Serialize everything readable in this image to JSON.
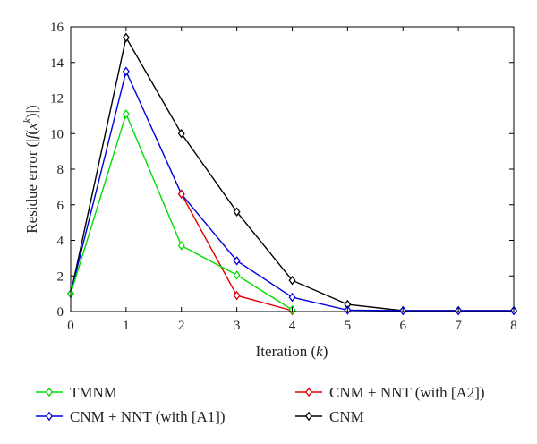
{
  "chart_data": {
    "type": "line",
    "xlabel_main": "Iteration (",
    "xlabel_var": "k",
    "xlabel_end": ")",
    "ylabel_pre": "Residue error (|",
    "ylabel_f": "f",
    "ylabel_open": "(",
    "ylabel_x": "x",
    "ylabel_k": "k",
    "ylabel_post": ")|)",
    "xlim": [
      0,
      8
    ],
    "ylim": [
      0,
      16
    ],
    "xticks": [
      0,
      1,
      2,
      3,
      4,
      5,
      6,
      7,
      8
    ],
    "yticks": [
      0,
      2,
      4,
      6,
      8,
      10,
      12,
      14,
      16
    ],
    "grid": false,
    "legend_position": "bottom",
    "marker": "diamond",
    "series": [
      {
        "name": "CNM",
        "color": "#000000",
        "x": [
          0,
          1,
          2,
          3,
          4,
          5,
          6,
          7,
          8
        ],
        "y": [
          1.0,
          15.4,
          10.0,
          5.6,
          1.75,
          0.4,
          0.05,
          0.05,
          0.05
        ]
      },
      {
        "name": "CNM + NNT (with [A1])",
        "color": "#0000dd",
        "x": [
          0,
          1,
          2,
          3,
          4,
          5,
          6,
          7,
          8
        ],
        "y": [
          1.0,
          13.5,
          6.6,
          2.85,
          0.8,
          0.08,
          0.05,
          0.05,
          0.05
        ]
      },
      {
        "name": "CNM + NNT (with [A2])",
        "color": "#e00000",
        "x": [
          2,
          3,
          4
        ],
        "y": [
          6.6,
          0.9,
          0.05
        ]
      },
      {
        "name": "TMNM",
        "color": "#00dd00",
        "x": [
          0,
          1,
          2,
          3,
          4
        ],
        "y": [
          1.0,
          11.1,
          3.7,
          2.05,
          0.1
        ]
      }
    ],
    "legend_order": [
      3,
      1,
      2,
      0
    ]
  }
}
